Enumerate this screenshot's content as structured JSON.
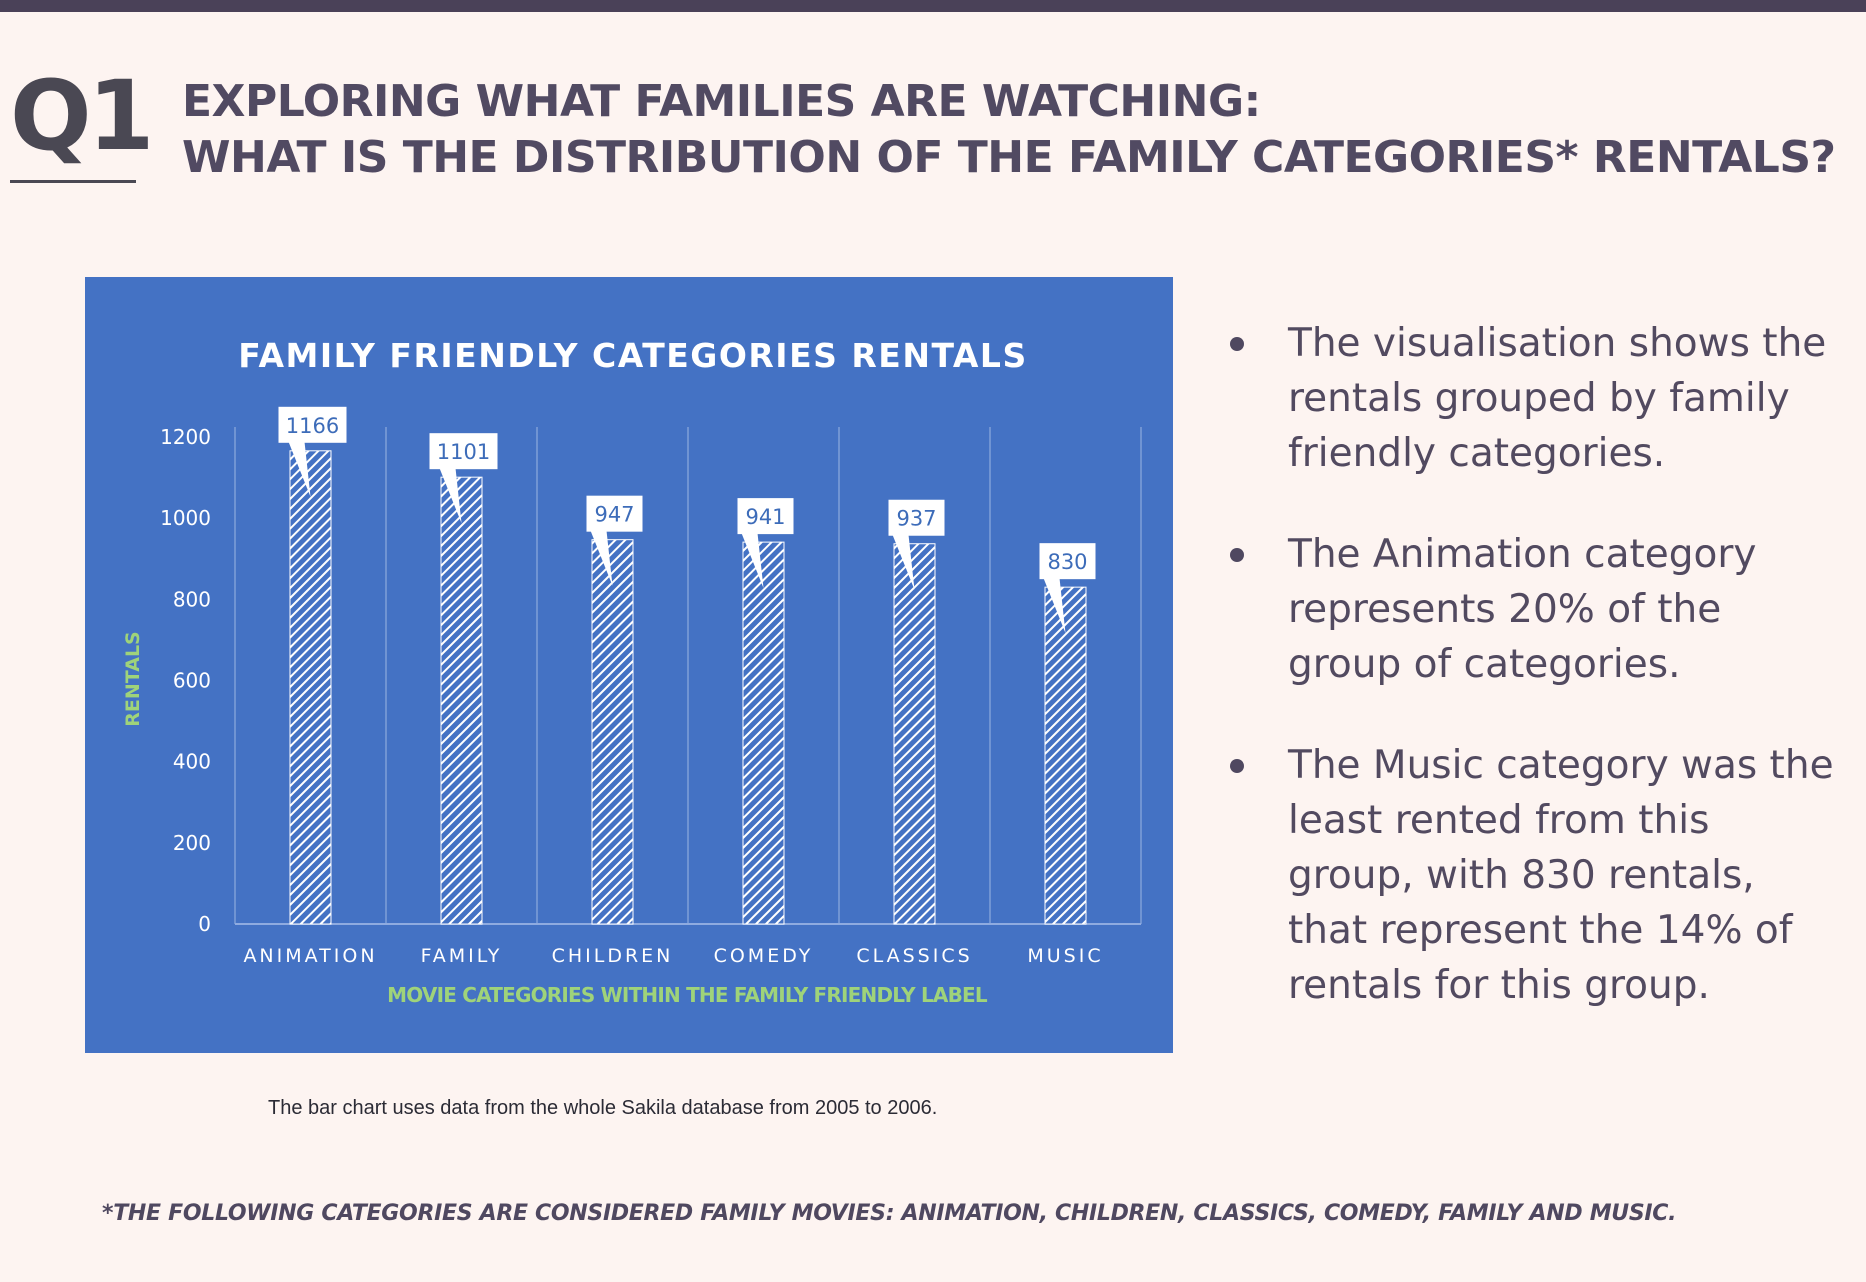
{
  "slide": {
    "badge": "Q1",
    "heading_line1": "EXPLORING WHAT FAMILIES ARE WATCHING:",
    "heading_line2": "WHAT IS THE DISTRIBUTION OF THE FAMILY CATEGORIES* RENTALS?",
    "bullets": [
      "The visualisation  shows the rentals grouped by family friendly categories.",
      "The Animation category represents 20% of the group of categories.",
      "The Music category was the least rented from this group, with 830 rentals, that represent the 14% of rentals for this group."
    ],
    "caption": "The bar chart uses data from the whole Sakila database from 2005 to 2006.",
    "footnote": "*THE FOLLOWING CATEGORIES ARE CONSIDERED FAMILY MOVIES: ANIMATION, CHILDREN, CLASSICS, COMEDY, FAMILY AND MUSIC."
  },
  "colors": {
    "panel": "#4472c4",
    "bar_pattern": "#ffffff",
    "axis_title": "#9fd37a",
    "callout_text": "#3d6cb9",
    "heading": "#514a62",
    "top_bar": "#4a4158"
  },
  "chart_data": {
    "type": "bar",
    "title": "FAMILY FRIENDLY CATEGORIES RENTALS",
    "xlabel": "MOVIE CATEGORIES WITHIN THE FAMILY FRIENDLY LABEL",
    "ylabel": "RENTALS",
    "categories": [
      "ANIMATION",
      "FAMILY",
      "CHILDREN",
      "COMEDY",
      "CLASSICS",
      "MUSIC"
    ],
    "values": [
      1166,
      1101,
      947,
      941,
      937,
      830
    ],
    "data_labels": [
      "1166",
      "1101",
      "947",
      "941",
      "937",
      "830"
    ],
    "y_ticks": [
      "0",
      "200",
      "400",
      "600",
      "800",
      "1000",
      "1200"
    ],
    "ylim": [
      0,
      1200
    ],
    "grid": "vertical category separators",
    "legend": "none",
    "bar_fill": "diagonal hatch"
  }
}
